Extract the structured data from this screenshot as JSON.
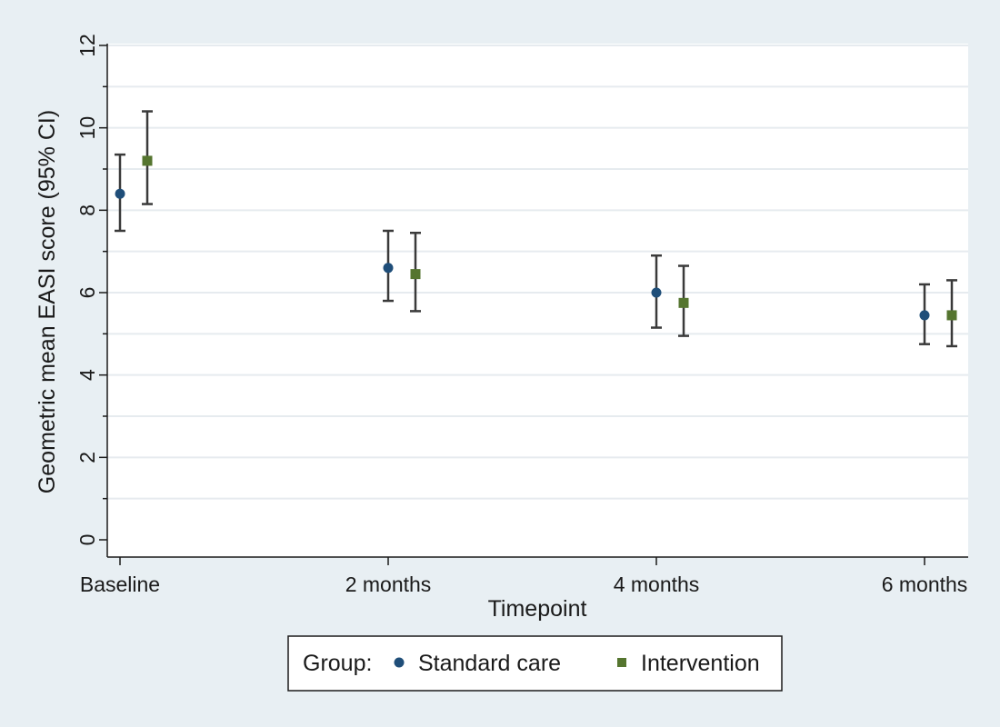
{
  "chart_data": {
    "type": "scatter",
    "title": "",
    "xlabel": "Timepoint",
    "ylabel": "Geometric mean EASI score (95% CI)",
    "categories": [
      "Baseline",
      "2 months",
      "4 months",
      "6 months"
    ],
    "ylim": [
      0,
      12
    ],
    "yticks": [
      0,
      2,
      4,
      6,
      8,
      10,
      12
    ],
    "grid": true,
    "legend": {
      "title": "Group:",
      "placement": "bottom"
    },
    "colors": {
      "background": "#e8eff3",
      "plot_area": "#ffffff",
      "error_bar": "#3a3a3a"
    },
    "series": [
      {
        "name": "Standard care",
        "marker": "circle",
        "color": "#1f4e79",
        "values": [
          8.4,
          6.6,
          6.0,
          5.45
        ],
        "ci_low": [
          7.5,
          5.8,
          5.15,
          4.75
        ],
        "ci_high": [
          9.35,
          7.5,
          6.9,
          6.2
        ]
      },
      {
        "name": "Intervention",
        "marker": "square",
        "color": "#55752f",
        "values": [
          9.2,
          6.45,
          5.75,
          5.45
        ],
        "ci_low": [
          8.15,
          5.55,
          4.95,
          4.7
        ],
        "ci_high": [
          10.4,
          7.45,
          6.65,
          6.3
        ]
      }
    ]
  }
}
